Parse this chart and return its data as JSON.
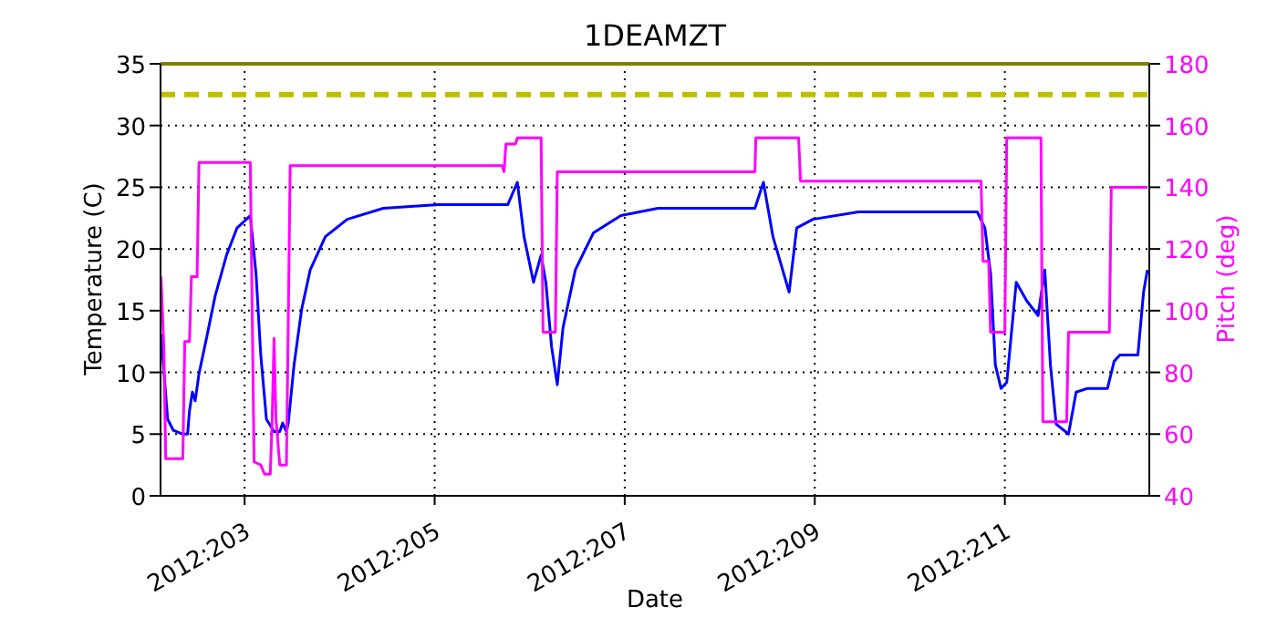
{
  "chart_data": {
    "type": "line",
    "title": "1DEAMZT",
    "xlabel": "Date",
    "ylabel": "Temperature (C)",
    "y2label": "Pitch (deg)",
    "xlim": [
      "2012-07-20T02:46",
      "2012-07-30T12:29"
    ],
    "xticks": [
      {
        "value": "2012-07-21",
        "label": "2012:203"
      },
      {
        "value": "2012-07-23",
        "label": "2012:205"
      },
      {
        "value": "2012-07-25",
        "label": "2012:207"
      },
      {
        "value": "2012-07-27",
        "label": "2012:209"
      },
      {
        "value": "2012-07-29",
        "label": "2012:211"
      }
    ],
    "ylim": [
      0,
      35
    ],
    "yticks": [
      0,
      5,
      10,
      15,
      20,
      25,
      30,
      35
    ],
    "y2lim": [
      40,
      180
    ],
    "y2ticks": [
      40,
      60,
      80,
      100,
      120,
      140,
      160,
      180
    ],
    "grid": true,
    "legend": false,
    "marker": "none",
    "line_style": "solid",
    "ref_lines": [
      {
        "axis": "y",
        "value": 32.5,
        "color": "#bfbf00",
        "line_style": "dashed"
      },
      {
        "axis": "y",
        "value": 35,
        "color": "#808000",
        "line_style": "solid"
      }
    ],
    "series": [
      {
        "color": "#0000ff",
        "x": [
          "2012-07-20T02:53",
          "2012-07-20T04:34",
          "2012-07-20T06:00",
          "2012-07-20T08:24",
          "2012-07-20T09:36",
          "2012-07-20T10:05",
          "2012-07-20T10:48",
          "2012-07-20T11:31",
          "2012-07-20T12:29",
          "2012-07-20T14:24",
          "2012-07-20T16:34",
          "2012-07-20T19:26",
          "2012-07-20T22:05",
          "2012-07-21T01:26",
          "2012-07-21T02:53",
          "2012-07-21T04:05",
          "2012-07-21T05:31",
          "2012-07-21T07:26",
          "2012-07-21T08:53",
          "2012-07-21T09:36",
          "2012-07-21T10:34",
          "2012-07-21T11:02",
          "2012-07-21T12:29",
          "2012-07-21T14:24",
          "2012-07-21T16:34",
          "2012-07-21T20:24",
          "2012-07-22T01:55",
          "2012-07-22T11:02",
          "2012-07-23T00:58",
          "2012-07-23T18:29",
          "2012-07-23T20:53",
          "2012-07-23T22:34",
          "2012-07-24T00:58",
          "2012-07-24T02:53",
          "2012-07-24T04:05",
          "2012-07-24T05:31",
          "2012-07-24T06:58",
          "2012-07-24T08:24",
          "2012-07-24T11:31",
          "2012-07-24T16:05",
          "2012-07-24T23:02",
          "2012-07-25T08:24",
          "2012-07-26T08:53",
          "2012-07-26T11:02",
          "2012-07-26T13:26",
          "2012-07-26T17:31",
          "2012-07-26T19:26",
          "2012-07-26T23:31",
          "2012-07-27T11:02",
          "2012-07-28T17:02",
          "2012-07-28T18:58",
          "2012-07-28T20:24",
          "2012-07-28T21:36",
          "2012-07-28T23:02",
          "2012-07-29T00:29",
          "2012-07-29T02:53",
          "2012-07-29T05:31",
          "2012-07-29T08:24",
          "2012-07-29T10:05",
          "2012-07-29T11:31",
          "2012-07-29T12:58",
          "2012-07-29T16:05",
          "2012-07-29T18:00",
          "2012-07-29T20:53",
          "2012-07-30T01:55",
          "2012-07-30T03:36",
          "2012-07-30T05:02",
          "2012-07-30T09:36",
          "2012-07-30T11:02",
          "2012-07-30T12:00"
        ],
        "values": [
          13.1,
          6.2,
          5.3,
          5.0,
          5.0,
          6.9,
          8.4,
          7.7,
          9.9,
          12.8,
          16.2,
          19.5,
          21.7,
          22.7,
          18.0,
          11.4,
          6.2,
          5.2,
          5.2,
          5.9,
          5.2,
          5.9,
          10.6,
          15.1,
          18.3,
          21.0,
          22.4,
          23.3,
          23.6,
          23.6,
          25.4,
          21.0,
          17.3,
          19.5,
          17.3,
          12.1,
          9.0,
          13.6,
          18.3,
          21.3,
          22.7,
          23.3,
          23.3,
          25.4,
          21.0,
          16.5,
          21.7,
          22.4,
          23.0,
          23.0,
          21.7,
          18.0,
          10.6,
          8.7,
          9.2,
          17.3,
          15.8,
          14.6,
          18.3,
          10.6,
          5.8,
          5.0,
          8.4,
          8.7,
          8.7,
          10.9,
          11.4,
          11.4,
          16.5,
          18.3
        ]
      },
      {
        "color": "#ff00ff",
        "axis": "y2",
        "x": [
          "2012-07-20T02:53",
          "2012-07-20T03:36",
          "2012-07-20T04:05",
          "2012-07-20T08:24",
          "2012-07-20T08:53",
          "2012-07-20T10:05",
          "2012-07-20T10:34",
          "2012-07-20T12:00",
          "2012-07-20T12:29",
          "2012-07-21T01:26",
          "2012-07-21T02:24",
          "2012-07-21T04:05",
          "2012-07-21T05:02",
          "2012-07-21T06:29",
          "2012-07-21T06:58",
          "2012-07-21T07:26",
          "2012-07-21T07:55",
          "2012-07-21T08:53",
          "2012-07-21T10:34",
          "2012-07-21T11:31",
          "2012-07-23T17:02",
          "2012-07-23T17:31",
          "2012-07-23T18:00",
          "2012-07-23T20:24",
          "2012-07-23T20:53",
          "2012-07-24T02:53",
          "2012-07-24T03:22",
          "2012-07-24T06:29",
          "2012-07-24T06:58",
          "2012-07-26T08:53",
          "2012-07-26T09:07",
          "2012-07-26T19:55",
          "2012-07-26T20:24",
          "2012-07-28T18:00",
          "2012-07-28T18:29",
          "2012-07-28T19:55",
          "2012-07-28T20:24",
          "2012-07-29T00:00",
          "2012-07-29T00:29",
          "2012-07-29T09:07",
          "2012-07-29T09:36",
          "2012-07-29T15:36",
          "2012-07-29T16:05",
          "2012-07-30T02:24",
          "2012-07-30T02:53",
          "2012-07-30T12:00"
        ],
        "values": [
          111,
          88,
          52,
          52,
          90,
          90,
          111,
          111,
          148,
          148,
          51,
          50,
          47,
          47,
          65,
          91,
          65,
          50,
          50,
          147,
          147,
          145,
          154,
          154,
          156,
          156,
          93,
          93,
          145,
          145,
          156,
          156,
          142,
          142,
          116,
          116,
          93,
          93,
          156,
          156,
          64,
          64,
          93,
          93,
          140,
          140
        ]
      }
    ]
  }
}
